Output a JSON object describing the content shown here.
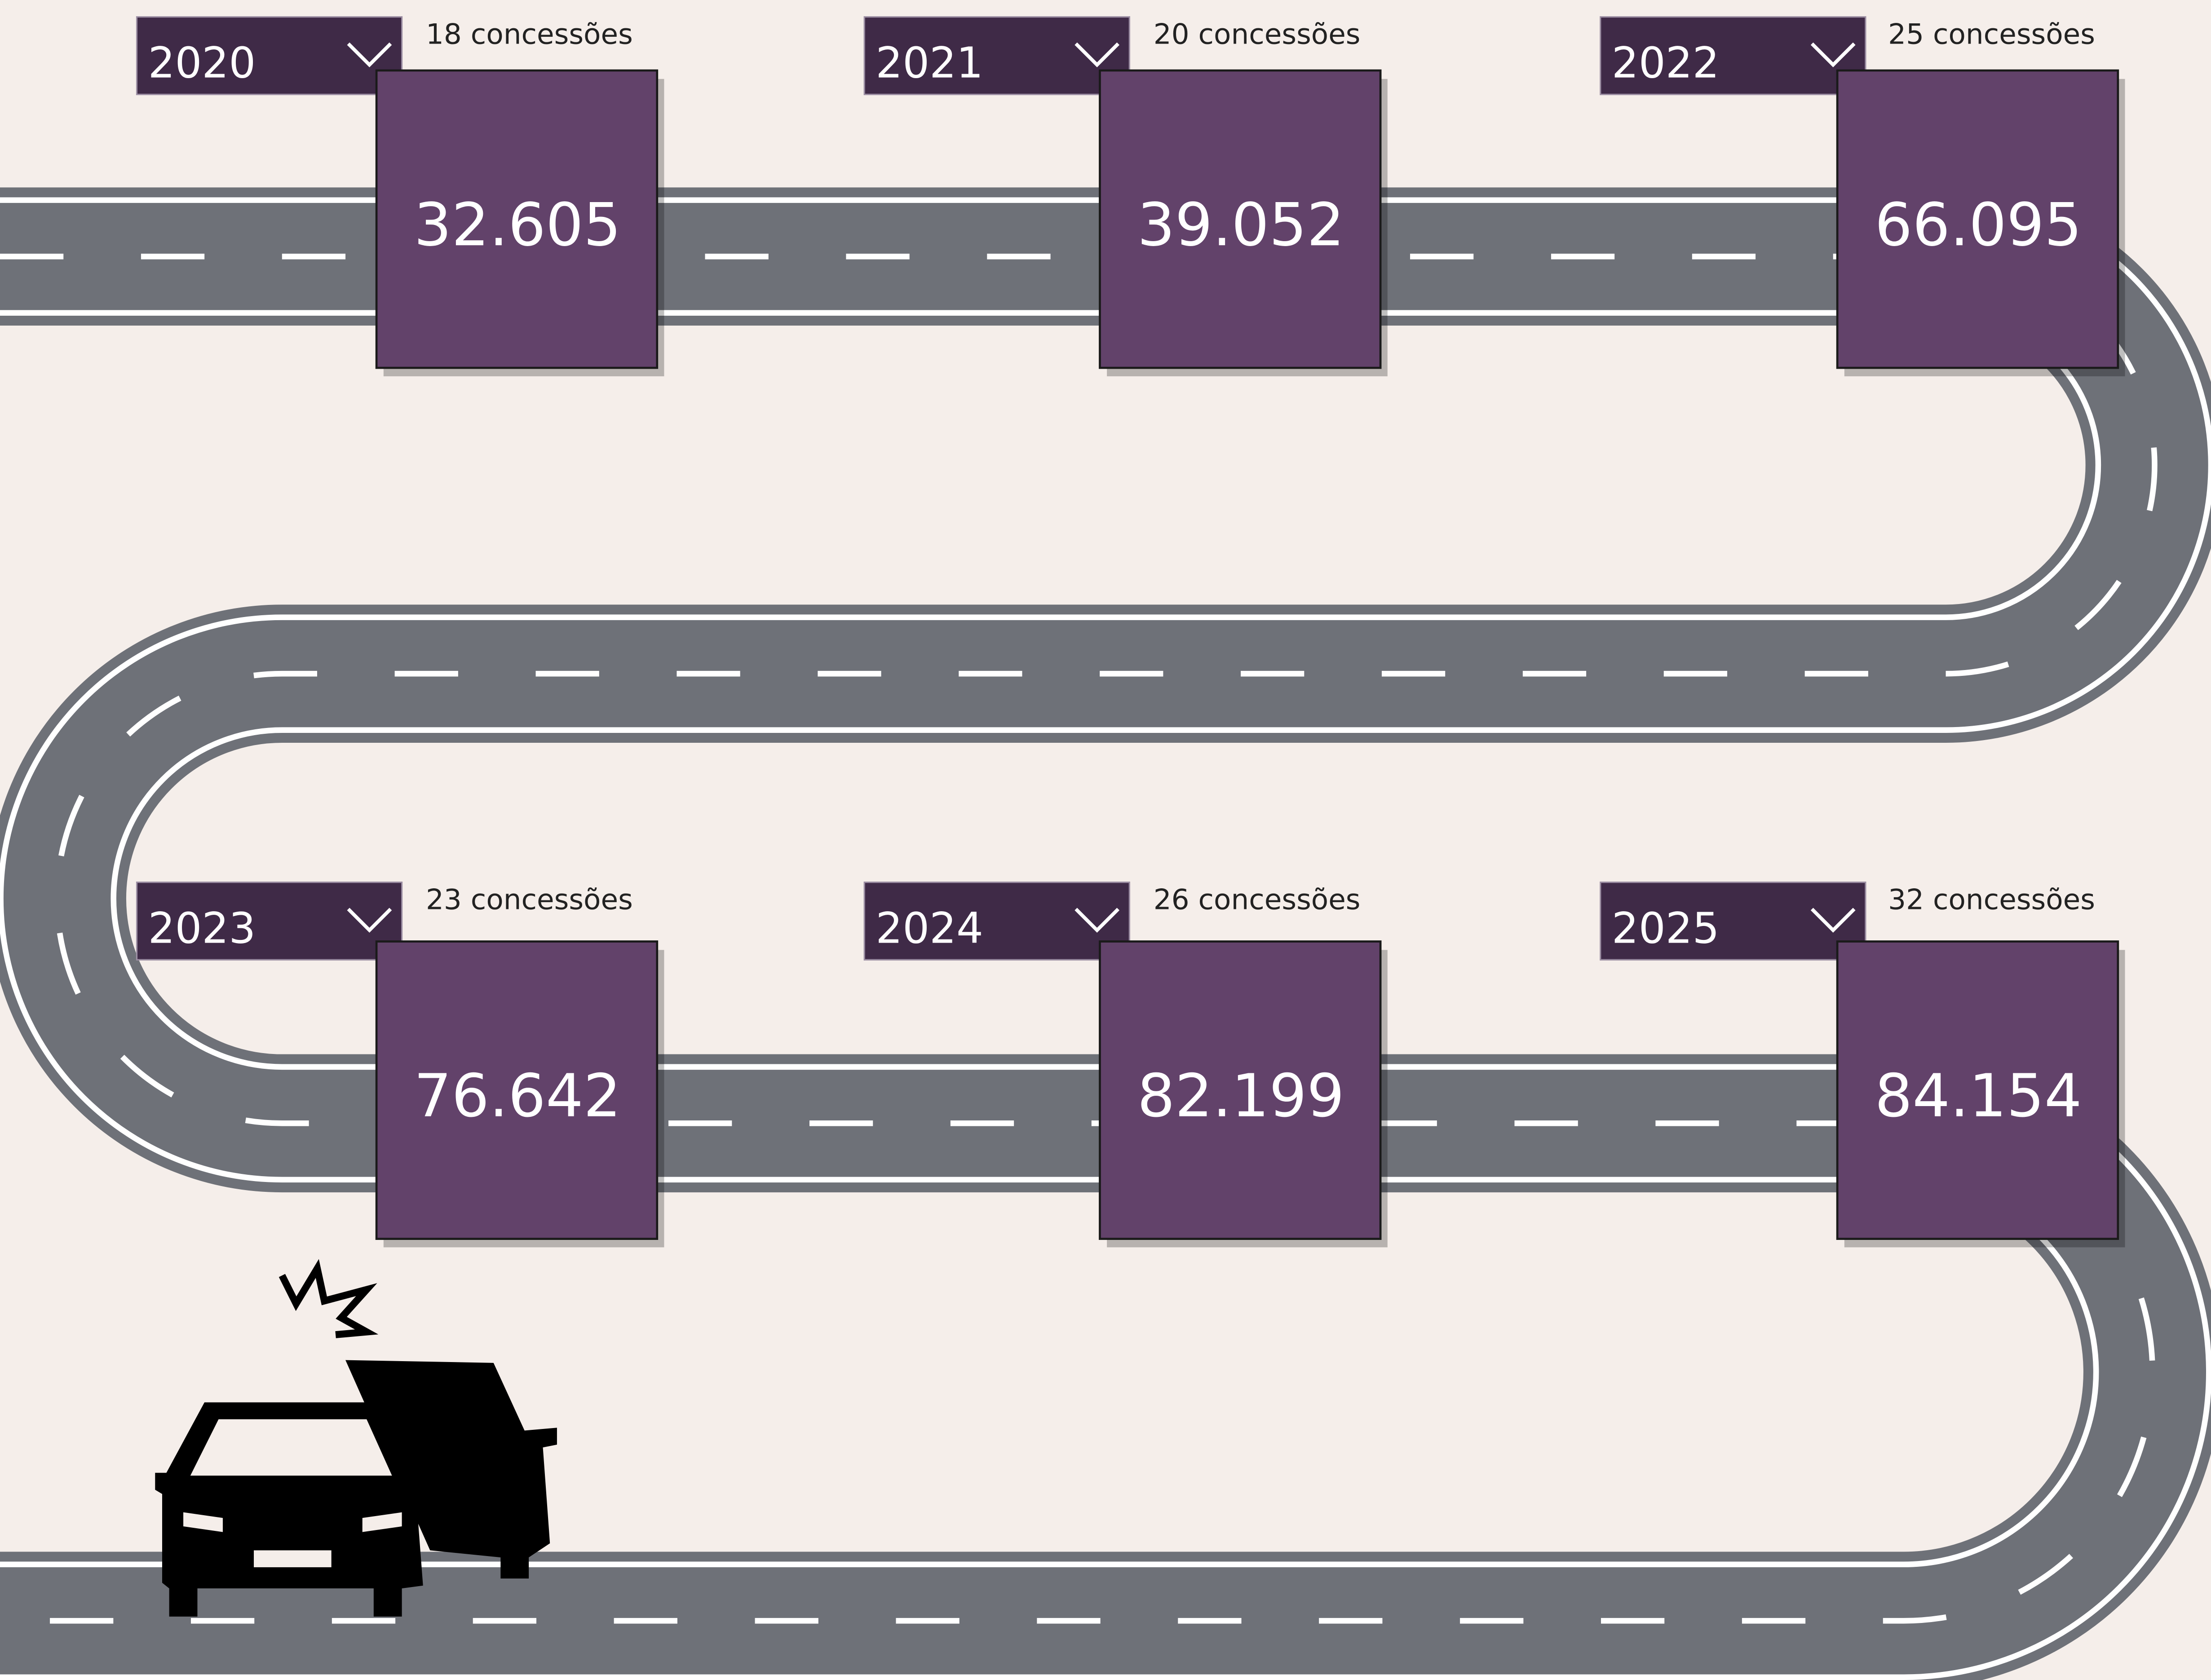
{
  "cards": [
    {
      "year": "2020",
      "label": "18 concessões",
      "value": "32.605"
    },
    {
      "year": "2021",
      "label": "20 concessões",
      "value": "39.052"
    },
    {
      "year": "2022",
      "label": "25 concessões",
      "value": "66.095"
    },
    {
      "year": "2023",
      "label": "23 concessões",
      "value": "76.642"
    },
    {
      "year": "2024",
      "label": "26 concessões",
      "value": "82.199"
    },
    {
      "year": "2025",
      "label": "32 concessões",
      "value": "84.154"
    }
  ]
}
